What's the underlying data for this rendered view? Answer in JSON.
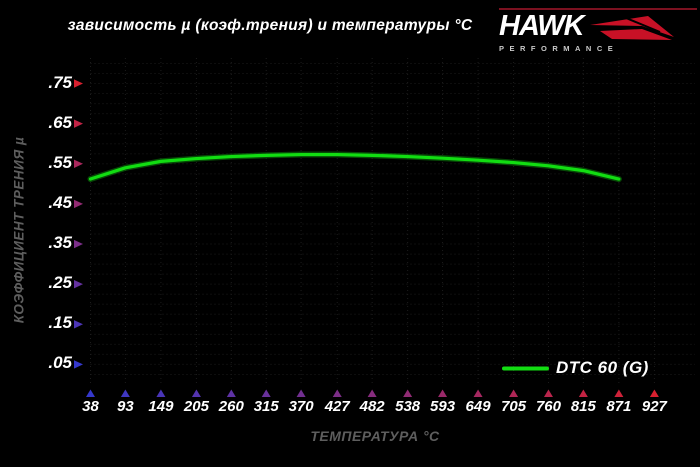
{
  "title": "зависимость µ (коэф.трения) и температуры °С",
  "logo": {
    "brand": "HAWK",
    "subtitle": "PERFORMANCE"
  },
  "colors": {
    "background": "#000000",
    "curve_green": "#12dd12",
    "curve_glow": "#0a7a0a",
    "axis_red": "#d8202f",
    "axis_blue": "#3538cc",
    "axis_dark_red": "#8f1623",
    "grid": "#1c1c1c",
    "label_white": "#ffffff",
    "label_gray": "#5e5e5e",
    "logo_red": "#c81126",
    "logo_rule_red": "#7c1120"
  },
  "chart_data": {
    "type": "line",
    "title": "зависимость µ (коэф.трения) и температуры °С",
    "xlabel": "ТЕМПЕРАТУРА °С",
    "ylabel": "КОЭФФИЦИЕНТ ТРЕНИЯ µ",
    "xlim": [
      38,
      927
    ],
    "ylim": [
      0,
      0.8
    ],
    "grid": true,
    "legend_position": "bottom-right",
    "x_ticks": [
      38,
      93,
      149,
      205,
      260,
      315,
      370,
      427,
      482,
      538,
      593,
      649,
      705,
      760,
      815,
      871,
      927
    ],
    "y_ticks": {
      "labels": [
        ".75",
        ".65",
        ".55",
        ".45",
        ".35",
        ".25",
        ".15",
        ".05"
      ],
      "values": [
        0.75,
        0.65,
        0.55,
        0.45,
        0.35,
        0.25,
        0.15,
        0.05
      ]
    },
    "series": [
      {
        "name": "DTC 60 (G)",
        "color": "#12dd12",
        "x": [
          38,
          93,
          149,
          205,
          260,
          315,
          370,
          427,
          482,
          538,
          593,
          649,
          705,
          760,
          815,
          871
        ],
        "y": [
          0.512,
          0.54,
          0.556,
          0.563,
          0.568,
          0.571,
          0.573,
          0.573,
          0.571,
          0.568,
          0.564,
          0.559,
          0.553,
          0.545,
          0.533,
          0.512
        ]
      }
    ]
  }
}
